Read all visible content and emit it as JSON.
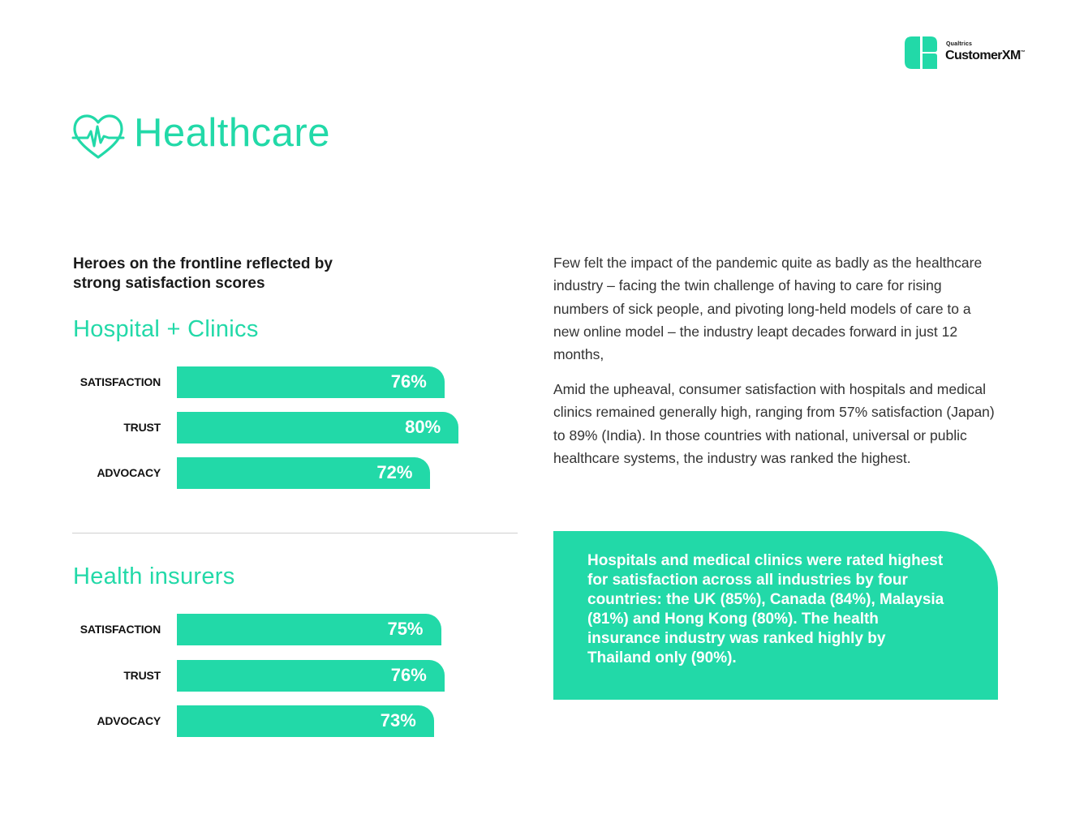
{
  "brand": {
    "company": "Qualtrics",
    "product": "CustomerXM",
    "trademark": "™"
  },
  "page": {
    "title": "Healthcare",
    "icon": "heartbeat-icon",
    "accent_color": "#22d9a8"
  },
  "subhead": "Heroes on the frontline reflected by strong satisfaction scores",
  "chart_data": [
    {
      "type": "bar",
      "title": "Hospital + Clinics",
      "categories": [
        "SATISFACTION",
        "TRUST",
        "ADVOCACY"
      ],
      "values": [
        76,
        80,
        72
      ],
      "labels": [
        "76%",
        "80%",
        "72%"
      ],
      "unit": "%",
      "orientation": "horizontal",
      "color": "#22d9a8"
    },
    {
      "type": "bar",
      "title": "Health insurers",
      "categories": [
        "SATISFACTION",
        "TRUST",
        "ADVOCACY"
      ],
      "values": [
        75,
        76,
        73
      ],
      "labels": [
        "75%",
        "76%",
        "73%"
      ],
      "unit": "%",
      "orientation": "horizontal",
      "color": "#22d9a8"
    }
  ],
  "body": {
    "paragraph_1": "Few felt the impact of the pandemic quite as badly as the healthcare industry – facing the twin challenge of having to care for rising numbers of sick people, and pivoting long-held models of care to a new online model – the industry leapt decades forward in just 12 months,",
    "paragraph_2": "Amid the upheaval, consumer satisfaction with hospitals and medical clinics remained generally high, ranging from 57% satisfaction (Japan) to 89% (India). In those countries with national, universal or public healthcare systems, the industry was ranked the highest."
  },
  "callout": {
    "text": "Hospitals and medical clinics were rated highest for satisfaction across all industries by four countries: the UK (85%), Canada (84%), Malaysia (81%) and Hong Kong (80%). The health insurance industry was ranked highly by Thailand only (90%)."
  }
}
